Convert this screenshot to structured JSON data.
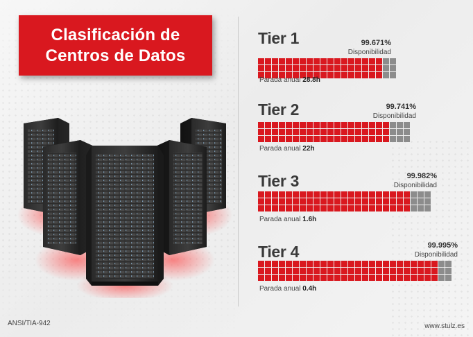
{
  "title": {
    "line1": "Clasificación de",
    "line2": "Centros de Datos"
  },
  "tiers": [
    {
      "name": "Tier 1",
      "availability": "99.671%",
      "availability_label": "Disponibilidad",
      "downtime_label": "Parada anual",
      "downtime_value": "28.8h",
      "availability_fraction": 0.99671
    },
    {
      "name": "Tier 2",
      "availability": "99.741%",
      "availability_label": "Disponibilidad",
      "downtime_label": "Parada anual",
      "downtime_value": "22h",
      "availability_fraction": 0.99741
    },
    {
      "name": "Tier 3",
      "availability": "99.982%",
      "availability_label": "Disponibilidad",
      "downtime_label": "Parada anual",
      "downtime_value": "1.6h",
      "availability_fraction": 0.99982
    },
    {
      "name": "Tier 4",
      "availability": "99.995%",
      "availability_label": "Disponibilidad",
      "downtime_label": "Parada anual",
      "downtime_value": "0.4h",
      "availability_fraction": 0.99995
    }
  ],
  "footer": {
    "standard": "ANSI/TIA-942",
    "website": "www.stulz.es"
  },
  "colors": {
    "brand_red": "#d9181f",
    "cell_grey": "#8c8c8c",
    "text_dark": "#3a3a3a"
  }
}
